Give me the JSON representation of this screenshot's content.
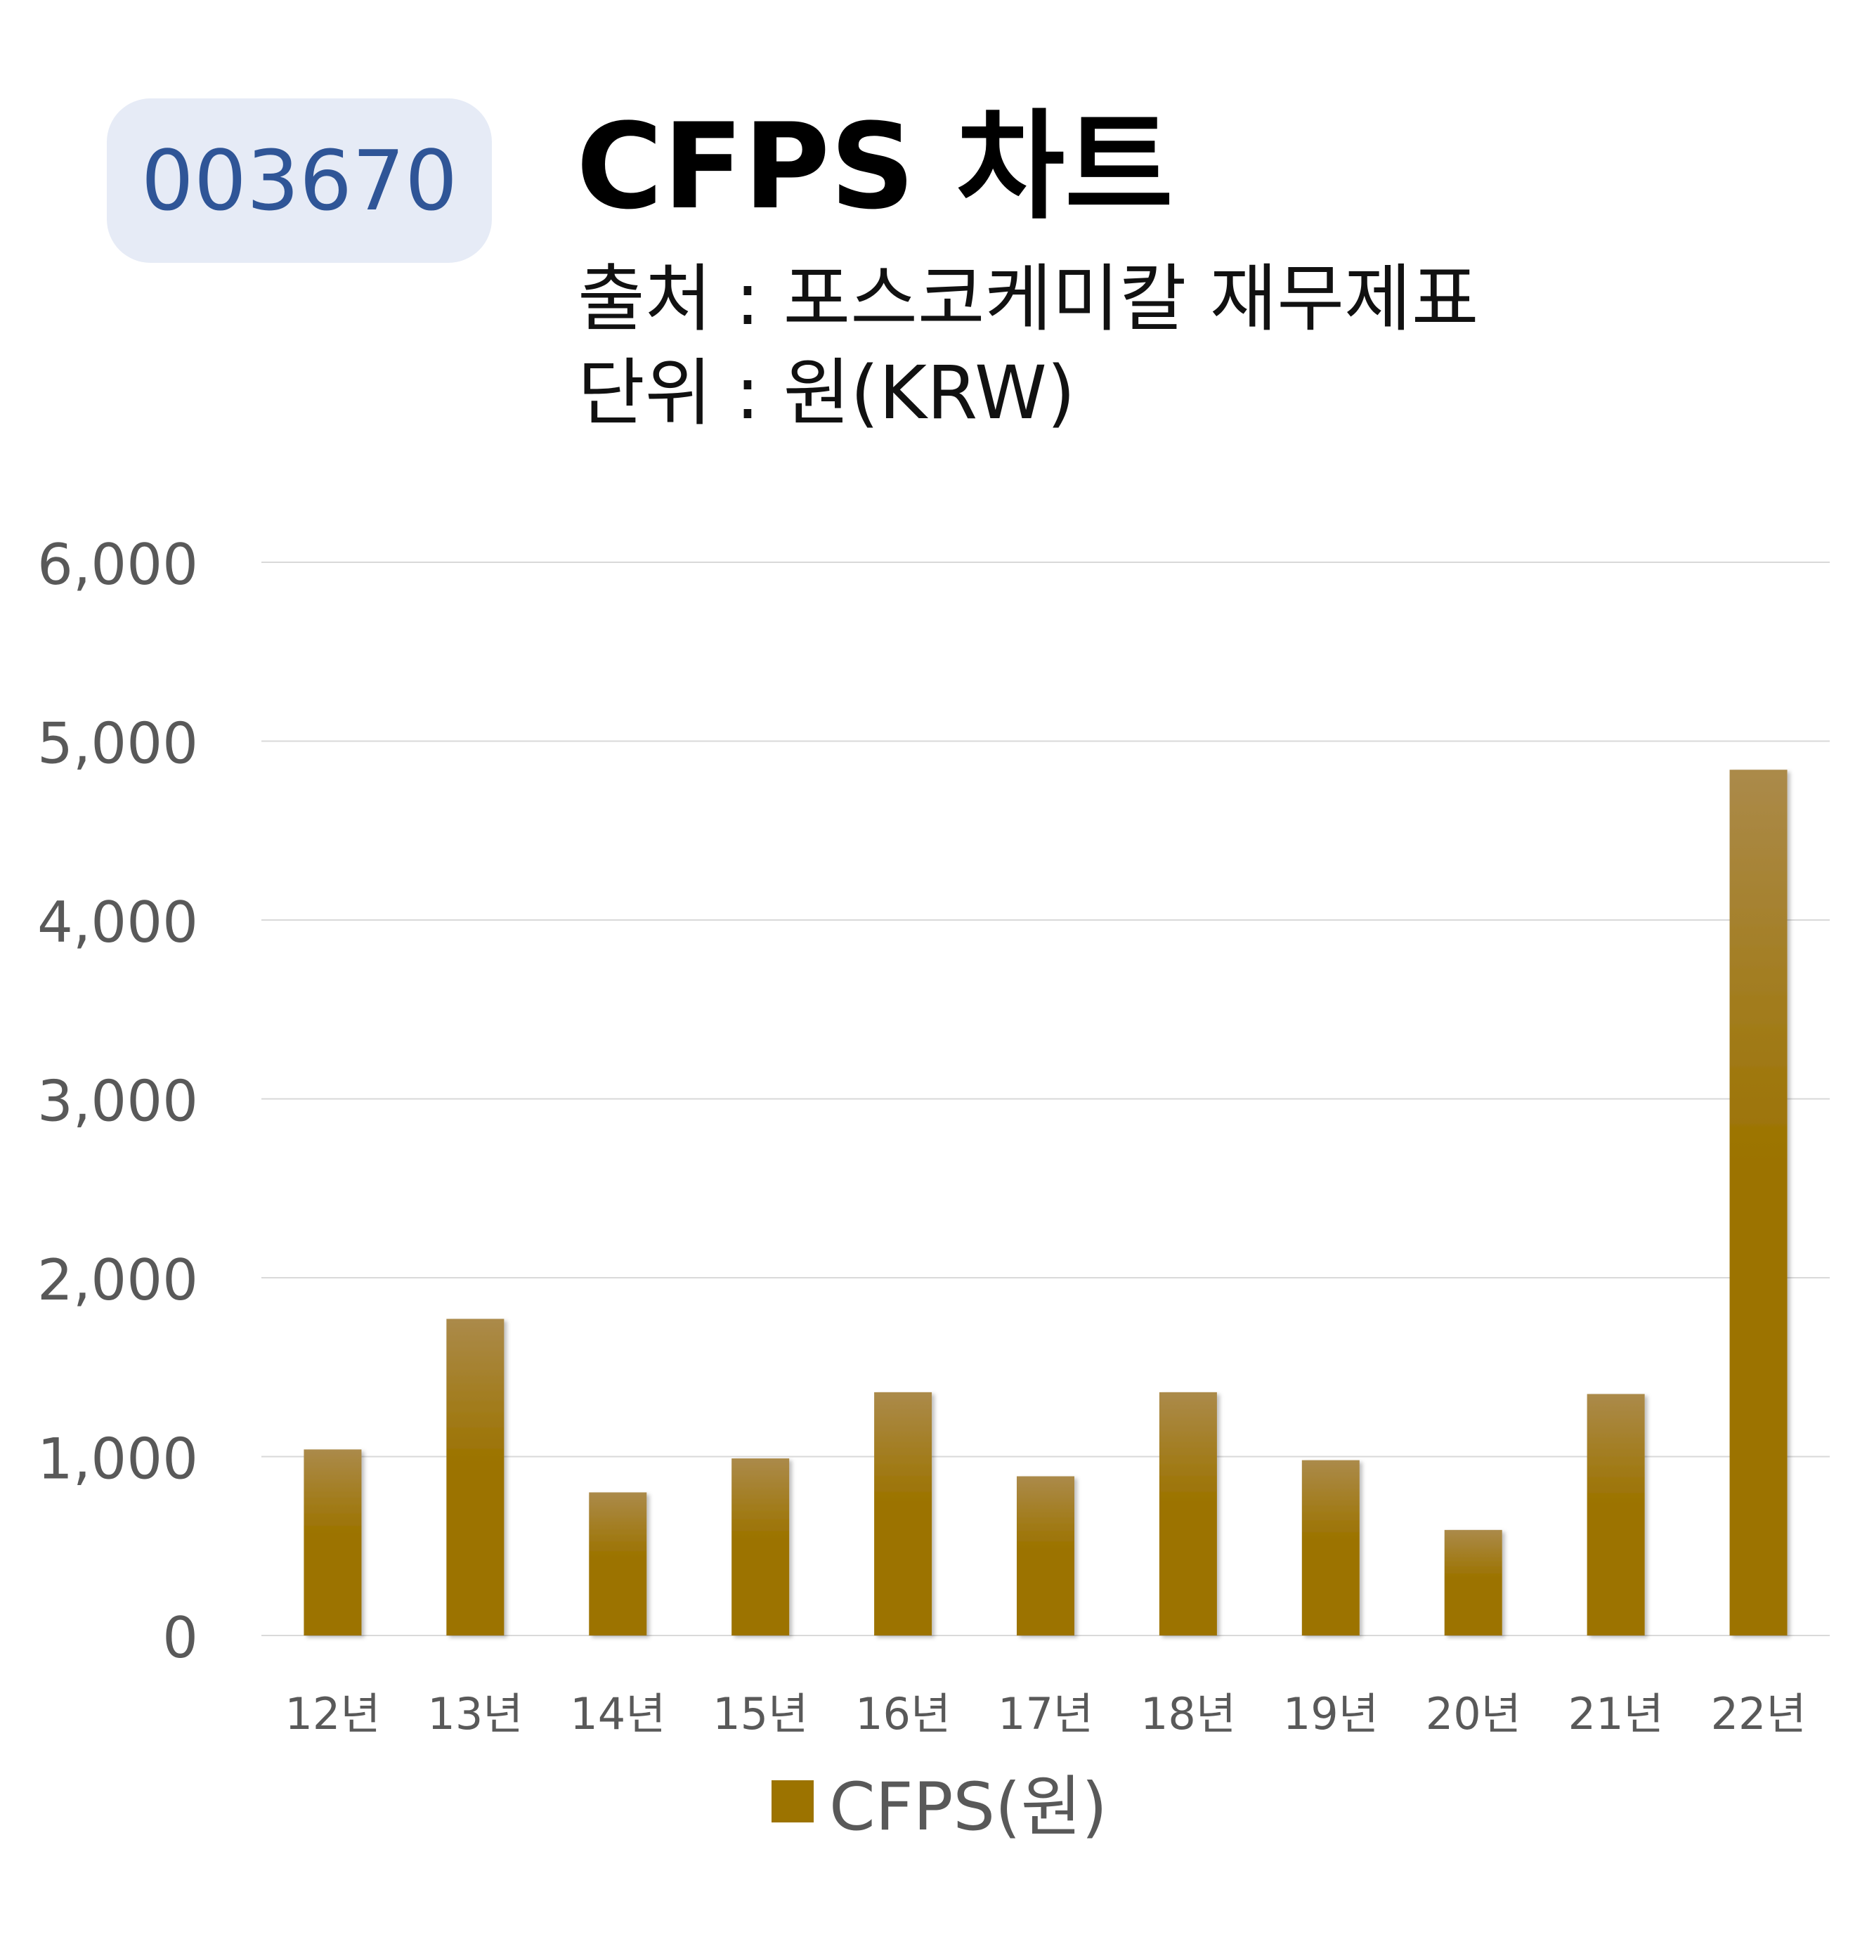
{
  "header": {
    "ticker": "003670",
    "title": "CFPS 차트",
    "source": "출처 : 포스코케미칼 재무제표",
    "unit": "단위 : 원(KRW)"
  },
  "colors": {
    "bar": "#9c7300",
    "bar_top": "#ab8a4a",
    "grid": "#d9d9d9",
    "badge_bg": "#e6ebf6",
    "badge_text": "#2f5597",
    "axis_text": "#595959"
  },
  "chart_data": {
    "type": "bar",
    "categories": [
      "12년",
      "13년",
      "14년",
      "15년",
      "16년",
      "17년",
      "18년",
      "19년",
      "20년",
      "21년",
      "22년"
    ],
    "series": [
      {
        "name": "CFPS(원)",
        "values": [
          1040,
          1770,
          800,
          990,
          1360,
          890,
          1360,
          980,
          590,
          1350,
          4840
        ]
      }
    ],
    "y_ticks": [
      "0",
      "1,000",
      "2,000",
      "3,000",
      "4,000",
      "5,000",
      "6,000"
    ],
    "ylim": [
      0,
      6000
    ],
    "grid": true,
    "legend": "bottom-center"
  }
}
